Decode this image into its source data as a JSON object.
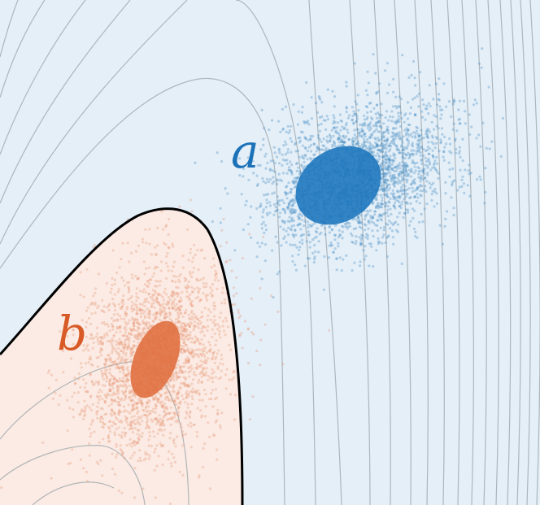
{
  "labels": {
    "a": "a",
    "b": "b"
  },
  "colors": {
    "region_a_fill": "#e4eff8",
    "region_b_fill": "#fbebe4",
    "boundary": "#000000",
    "contour": "#9aa3a8",
    "cluster_a_points": "#4a8ec4",
    "cluster_a_ellipse": "#1f78be",
    "cluster_b_points": "#e89c7c",
    "cluster_b_ellipse": "#e07040",
    "label_a": "#1c72b8",
    "label_b": "#d85a26"
  }
}
